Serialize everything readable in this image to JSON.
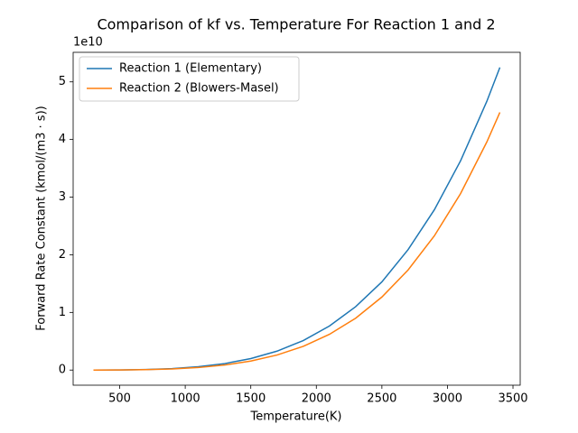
{
  "chart_data": {
    "type": "line",
    "title": "Comparison of kf vs. Temperature For Reaction 1 and 2",
    "x_label": "Temperature(K)",
    "y_label": "Forward Rate Constant (kmol/(m3 · s))",
    "y_offset_label": "1e10",
    "x": [
      300,
      500,
      700,
      900,
      1100,
      1300,
      1500,
      1700,
      1900,
      2100,
      2300,
      2500,
      2700,
      2900,
      3100,
      3300,
      3400
    ],
    "series": [
      {
        "name": "Reaction 1 (Elementary)",
        "color": "#1f77b4",
        "values": [
          0.0003,
          0.0025,
          0.0094,
          0.026,
          0.058,
          0.112,
          0.199,
          0.328,
          0.512,
          0.764,
          1.1,
          1.53,
          2.09,
          2.78,
          3.63,
          4.66,
          5.25
        ]
      },
      {
        "name": "Reaction 2 (Blowers-Masel)",
        "color": "#ff7f0e",
        "values": [
          0.0002,
          0.0017,
          0.0069,
          0.0192,
          0.0437,
          0.0868,
          0.156,
          0.261,
          0.411,
          0.62,
          0.9,
          1.267,
          1.737,
          2.328,
          3.061,
          3.955,
          4.47
        ]
      }
    ],
    "xlim": [
      145,
      3555
    ],
    "xticks": [
      500,
      1000,
      1500,
      2000,
      2500,
      3000,
      3500
    ],
    "ylim": [
      -0.2625,
      5.5125
    ],
    "yticks": [
      0,
      1,
      2,
      3,
      4,
      5
    ],
    "grid": false,
    "legend": "upper left"
  }
}
